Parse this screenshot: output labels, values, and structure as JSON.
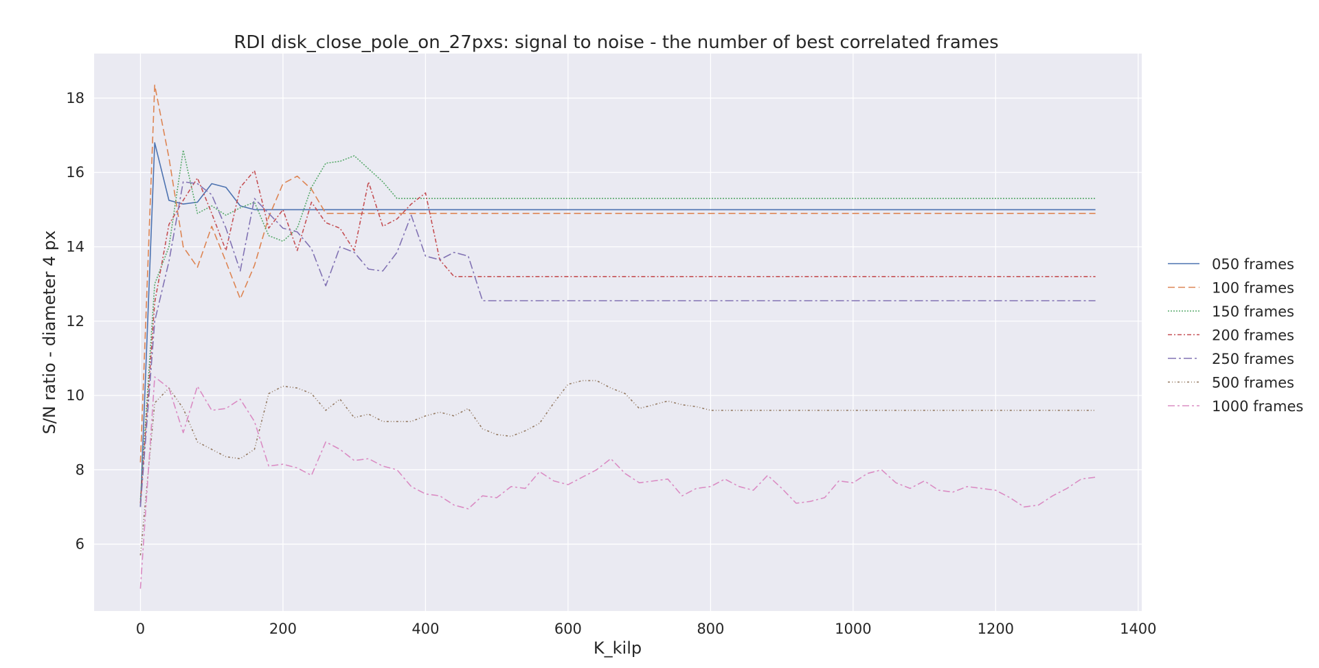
{
  "chart_data": {
    "type": "line",
    "title": "RDI disk_close_pole_on_27pxs: signal to noise - the number of best correlated frames",
    "xlabel": "K_kilp",
    "ylabel": "S/N ratio - diameter 4 px",
    "xlim": [
      -65,
      1405
    ],
    "ylim": [
      4.2,
      19.2
    ],
    "xticks": [
      0,
      200,
      400,
      600,
      800,
      1000,
      1200,
      1400
    ],
    "yticks": [
      6,
      8,
      10,
      12,
      14,
      16,
      18
    ],
    "grid": true,
    "legend_position": "right",
    "series": [
      {
        "name": "050 frames",
        "color": "#4c72b0",
        "dash": "",
        "points": [
          [
            0,
            7.0
          ],
          [
            20,
            16.8
          ],
          [
            40,
            15.25
          ],
          [
            60,
            15.15
          ],
          [
            80,
            15.2
          ],
          [
            100,
            15.7
          ],
          [
            120,
            15.6
          ],
          [
            140,
            15.1
          ],
          [
            160,
            15.0
          ],
          [
            180,
            15.0
          ],
          [
            200,
            15.0
          ],
          [
            400,
            15.0
          ],
          [
            1340,
            15.0
          ]
        ]
      },
      {
        "name": "100 frames",
        "color": "#dd8452",
        "dash": "10,5",
        "points": [
          [
            0,
            8.2
          ],
          [
            20,
            18.35
          ],
          [
            40,
            16.4
          ],
          [
            60,
            14.0
          ],
          [
            80,
            13.45
          ],
          [
            100,
            14.55
          ],
          [
            120,
            13.6
          ],
          [
            140,
            12.6
          ],
          [
            160,
            13.5
          ],
          [
            180,
            14.8
          ],
          [
            200,
            15.7
          ],
          [
            220,
            15.9
          ],
          [
            240,
            15.55
          ],
          [
            260,
            14.9
          ],
          [
            300,
            14.9
          ],
          [
            400,
            14.9
          ],
          [
            1340,
            14.9
          ]
        ]
      },
      {
        "name": "150 frames",
        "color": "#55a868",
        "dash": "2,2",
        "points": [
          [
            0,
            7.2
          ],
          [
            20,
            13.0
          ],
          [
            40,
            14.0
          ],
          [
            60,
            16.6
          ],
          [
            80,
            14.9
          ],
          [
            100,
            15.1
          ],
          [
            120,
            14.85
          ],
          [
            140,
            15.05
          ],
          [
            160,
            15.2
          ],
          [
            180,
            14.3
          ],
          [
            200,
            14.15
          ],
          [
            220,
            14.5
          ],
          [
            240,
            15.6
          ],
          [
            260,
            16.25
          ],
          [
            280,
            16.3
          ],
          [
            300,
            16.45
          ],
          [
            320,
            16.1
          ],
          [
            340,
            15.75
          ],
          [
            360,
            15.3
          ],
          [
            380,
            15.3
          ],
          [
            1340,
            15.3
          ]
        ]
      },
      {
        "name": "200 frames",
        "color": "#c44e52",
        "dash": "6,3,2,3",
        "points": [
          [
            0,
            7.1
          ],
          [
            20,
            12.5
          ],
          [
            40,
            14.6
          ],
          [
            60,
            15.25
          ],
          [
            80,
            15.85
          ],
          [
            100,
            14.9
          ],
          [
            120,
            13.9
          ],
          [
            140,
            15.6
          ],
          [
            160,
            16.05
          ],
          [
            180,
            14.5
          ],
          [
            200,
            15.0
          ],
          [
            220,
            13.9
          ],
          [
            240,
            15.2
          ],
          [
            260,
            14.65
          ],
          [
            280,
            14.5
          ],
          [
            300,
            13.9
          ],
          [
            320,
            15.75
          ],
          [
            340,
            14.55
          ],
          [
            360,
            14.75
          ],
          [
            380,
            15.15
          ],
          [
            400,
            15.45
          ],
          [
            420,
            13.65
          ],
          [
            440,
            13.2
          ],
          [
            460,
            13.2
          ],
          [
            1340,
            13.2
          ]
        ]
      },
      {
        "name": "250 frames",
        "color": "#8172b3",
        "dash": "12,4,3,4",
        "points": [
          [
            0,
            7.0
          ],
          [
            20,
            12.0
          ],
          [
            40,
            13.6
          ],
          [
            60,
            15.75
          ],
          [
            80,
            15.7
          ],
          [
            100,
            15.4
          ],
          [
            120,
            14.5
          ],
          [
            140,
            13.35
          ],
          [
            160,
            15.3
          ],
          [
            180,
            14.9
          ],
          [
            200,
            14.5
          ],
          [
            220,
            14.4
          ],
          [
            240,
            13.95
          ],
          [
            260,
            12.95
          ],
          [
            280,
            14.0
          ],
          [
            300,
            13.85
          ],
          [
            320,
            13.4
          ],
          [
            340,
            13.35
          ],
          [
            360,
            13.85
          ],
          [
            380,
            14.85
          ],
          [
            400,
            13.75
          ],
          [
            420,
            13.65
          ],
          [
            440,
            13.85
          ],
          [
            460,
            13.75
          ],
          [
            480,
            12.55
          ],
          [
            500,
            12.55
          ],
          [
            1340,
            12.55
          ]
        ]
      },
      {
        "name": "500 frames",
        "color": "#937860",
        "dash": "3,3,1,3,1,3",
        "points": [
          [
            0,
            5.7
          ],
          [
            20,
            9.8
          ],
          [
            40,
            10.2
          ],
          [
            60,
            9.65
          ],
          [
            80,
            8.75
          ],
          [
            100,
            8.55
          ],
          [
            120,
            8.35
          ],
          [
            140,
            8.3
          ],
          [
            160,
            8.55
          ],
          [
            180,
            10.05
          ],
          [
            200,
            10.25
          ],
          [
            220,
            10.2
          ],
          [
            240,
            10.05
          ],
          [
            260,
            9.6
          ],
          [
            280,
            9.9
          ],
          [
            300,
            9.4
          ],
          [
            320,
            9.5
          ],
          [
            340,
            9.3
          ],
          [
            360,
            9.3
          ],
          [
            380,
            9.3
          ],
          [
            400,
            9.45
          ],
          [
            420,
            9.55
          ],
          [
            440,
            9.45
          ],
          [
            460,
            9.65
          ],
          [
            480,
            9.1
          ],
          [
            500,
            8.95
          ],
          [
            520,
            8.9
          ],
          [
            540,
            9.05
          ],
          [
            560,
            9.25
          ],
          [
            580,
            9.8
          ],
          [
            600,
            10.3
          ],
          [
            620,
            10.4
          ],
          [
            640,
            10.4
          ],
          [
            660,
            10.2
          ],
          [
            680,
            10.05
          ],
          [
            700,
            9.65
          ],
          [
            720,
            9.75
          ],
          [
            740,
            9.85
          ],
          [
            760,
            9.75
          ],
          [
            780,
            9.7
          ],
          [
            800,
            9.6
          ],
          [
            820,
            9.6
          ],
          [
            1340,
            9.6
          ]
        ]
      },
      {
        "name": "1000 frames",
        "color": "#da8bc3",
        "dash": "10,4,3,4",
        "points": [
          [
            0,
            4.8
          ],
          [
            20,
            10.5
          ],
          [
            40,
            10.2
          ],
          [
            60,
            9.0
          ],
          [
            80,
            10.25
          ],
          [
            100,
            9.6
          ],
          [
            120,
            9.65
          ],
          [
            140,
            9.9
          ],
          [
            160,
            9.3
          ],
          [
            180,
            8.1
          ],
          [
            200,
            8.15
          ],
          [
            220,
            8.05
          ],
          [
            240,
            7.85
          ],
          [
            260,
            8.75
          ],
          [
            280,
            8.55
          ],
          [
            300,
            8.25
          ],
          [
            320,
            8.3
          ],
          [
            340,
            8.1
          ],
          [
            360,
            8.0
          ],
          [
            380,
            7.55
          ],
          [
            400,
            7.35
          ],
          [
            420,
            7.3
          ],
          [
            440,
            7.05
          ],
          [
            460,
            6.95
          ],
          [
            480,
            7.3
          ],
          [
            500,
            7.25
          ],
          [
            520,
            7.55
          ],
          [
            540,
            7.5
          ],
          [
            560,
            7.95
          ],
          [
            580,
            7.7
          ],
          [
            600,
            7.6
          ],
          [
            620,
            7.8
          ],
          [
            640,
            8.0
          ],
          [
            660,
            8.3
          ],
          [
            680,
            7.9
          ],
          [
            700,
            7.65
          ],
          [
            720,
            7.7
          ],
          [
            740,
            7.75
          ],
          [
            760,
            7.3
          ],
          [
            780,
            7.5
          ],
          [
            800,
            7.55
          ],
          [
            820,
            7.75
          ],
          [
            840,
            7.55
          ],
          [
            860,
            7.45
          ],
          [
            880,
            7.85
          ],
          [
            900,
            7.5
          ],
          [
            920,
            7.1
          ],
          [
            940,
            7.15
          ],
          [
            960,
            7.25
          ],
          [
            980,
            7.7
          ],
          [
            1000,
            7.65
          ],
          [
            1020,
            7.9
          ],
          [
            1040,
            8.0
          ],
          [
            1060,
            7.65
          ],
          [
            1080,
            7.5
          ],
          [
            1100,
            7.7
          ],
          [
            1120,
            7.45
          ],
          [
            1140,
            7.4
          ],
          [
            1160,
            7.55
          ],
          [
            1180,
            7.5
          ],
          [
            1200,
            7.45
          ],
          [
            1220,
            7.25
          ],
          [
            1240,
            7.0
          ],
          [
            1260,
            7.05
          ],
          [
            1280,
            7.3
          ],
          [
            1300,
            7.5
          ],
          [
            1320,
            7.75
          ],
          [
            1340,
            7.8
          ]
        ]
      }
    ]
  }
}
